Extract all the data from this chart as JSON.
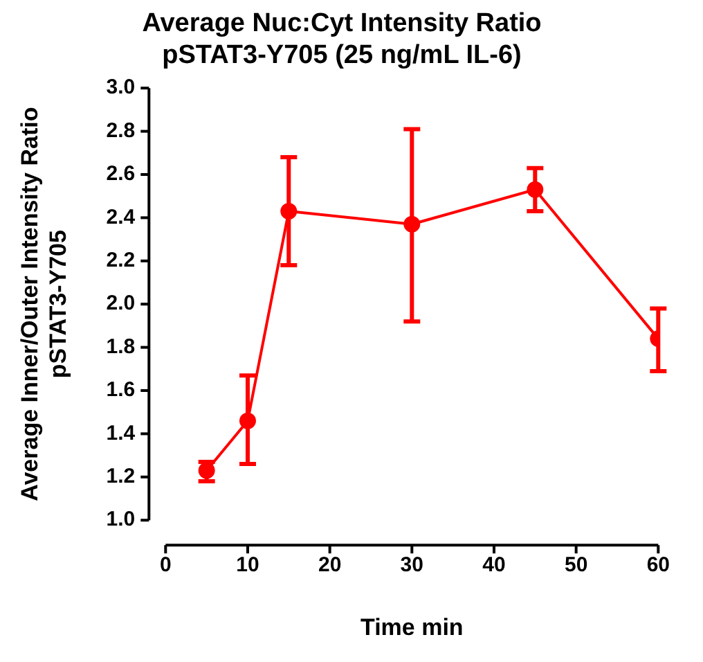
{
  "chart_data": {
    "type": "line",
    "title": "Average Nuc:Cyt Intensity Ratio\npSTAT3-Y705 (25 ng/mL IL-6)",
    "xlabel": "Time min",
    "ylabel": "Average Inner/Outer Intensity Ratio\npSTAT3-Y705",
    "x": [
      5,
      10,
      15,
      30,
      45,
      60
    ],
    "series": [
      {
        "color": "#ff0000",
        "values": [
          1.23,
          1.46,
          2.43,
          2.37,
          2.53,
          1.84
        ],
        "errors": [
          [
            1.18,
            1.27
          ],
          [
            1.26,
            1.67
          ],
          [
            2.18,
            2.68
          ],
          [
            1.92,
            2.81
          ],
          [
            2.43,
            2.63
          ],
          [
            1.69,
            1.98
          ]
        ]
      }
    ],
    "xlim": [
      0,
      60
    ],
    "xticks": [
      0,
      10,
      20,
      30,
      40,
      50,
      60
    ],
    "ylim": [
      1.0,
      3.0
    ],
    "yticks": [
      {
        "value": 1.0,
        "label": "1.0"
      },
      {
        "value": 1.2,
        "label": "1.2"
      },
      {
        "value": 1.4,
        "label": "1.4"
      },
      {
        "value": 1.6,
        "label": "1.6"
      },
      {
        "value": 1.8,
        "label": "1.8"
      },
      {
        "value": 2.0,
        "label": "2.0"
      },
      {
        "value": 2.2,
        "label": "2.2"
      },
      {
        "value": 2.4,
        "label": "2.4"
      },
      {
        "value": 2.6,
        "label": "2.6"
      },
      {
        "value": 2.8,
        "label": "2.8"
      },
      {
        "value": 3.0,
        "label": "3.0"
      }
    ],
    "grid": false,
    "legend": false,
    "marker": "circle",
    "line_style": "solid"
  }
}
